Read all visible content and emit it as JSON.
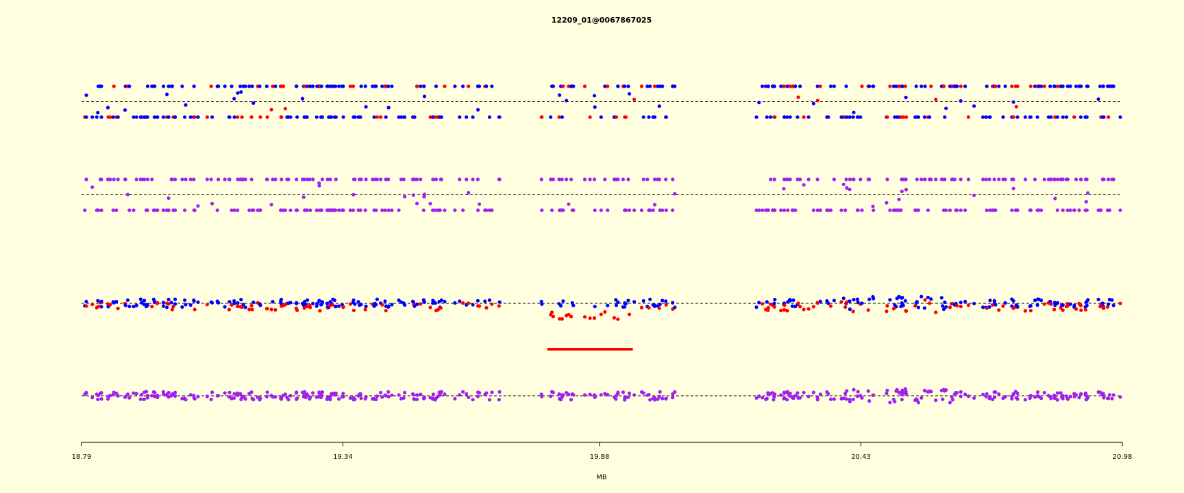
{
  "chart_data": {
    "type": "scatter",
    "title": "12209_01@0067867025",
    "xlabel": "MB",
    "ylabel": "",
    "xlim": [
      18.79,
      20.98
    ],
    "x_ticks": [
      "18.79",
      "19.34",
      "19.88",
      "20.43",
      "20.98"
    ],
    "grid": false,
    "legend": "none",
    "colors": {
      "background": "#ffffe0",
      "series_a": "#0000ff",
      "series_b": "#ff0000",
      "combined": "#a020f0",
      "segment": "#ff0000"
    },
    "x_gap_ranges": [
      [
        19.67,
        19.75
      ],
      [
        20.04,
        20.21
      ]
    ],
    "tracks": [
      {
        "track": "genotype-calls",
        "reference_y": 0.5,
        "ylim": [
          0,
          1
        ],
        "value_levels": [
          0,
          0.5,
          1
        ],
        "series": [
          {
            "color": "#0000ff",
            "density": 0.75
          },
          {
            "color": "#ff0000",
            "density": 0.25
          }
        ]
      },
      {
        "track": "combined-calls",
        "reference_y": 0.5,
        "ylim": [
          0,
          1
        ],
        "value_levels": [
          0,
          0.5,
          1
        ],
        "series": [
          {
            "color": "#a020f0",
            "density": 1.0
          }
        ]
      },
      {
        "track": "log-ratio",
        "reference_y": 0,
        "ylim": [
          -0.4,
          0.4
        ],
        "series": [
          {
            "color": "#0000ff",
            "density": 0.6
          },
          {
            "color": "#ff0000",
            "density": 0.4
          }
        ]
      },
      {
        "track": "combined-ratio",
        "reference_y": 0,
        "ylim": [
          -0.4,
          0.4
        ],
        "series": [
          {
            "color": "#a020f0",
            "density": 1.0
          }
        ]
      }
    ],
    "segments": [
      {
        "x_start": 19.77,
        "x_end": 19.95,
        "color": "#ff0000"
      }
    ]
  }
}
